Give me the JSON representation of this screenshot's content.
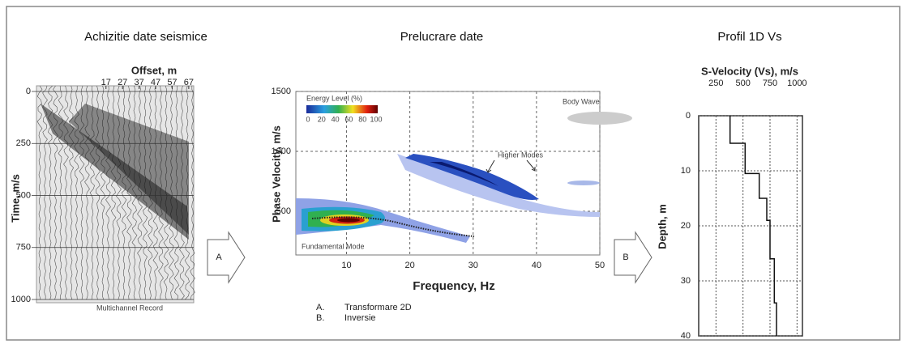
{
  "panels": [
    {
      "heading": "Achizitie date seismice",
      "x_label": "Offset, m",
      "y_label": "Time, m/s",
      "caption": "Multichannel Record",
      "xticks": [
        17,
        27,
        37,
        47,
        57,
        67
      ],
      "xlim": [
        -25,
        70
      ],
      "yticks": [
        0,
        250,
        500,
        750,
        1000
      ],
      "ylim": [
        0,
        1000
      ]
    },
    {
      "heading": "Prelucrare date",
      "x_label": "Frequency, Hz",
      "y_label": "Phase Velocity, m/s",
      "xticks": [
        10,
        20,
        30,
        40,
        50
      ],
      "xlim": [
        2,
        50
      ],
      "yticks": [
        500,
        1000,
        1500
      ],
      "ylim": [
        135,
        1500
      ],
      "grid": true,
      "legend_title": "Energy Level (%)",
      "legend_ticks": [
        0,
        20,
        40,
        60,
        80,
        100
      ],
      "annotations": [
        "Body Wave",
        "Higher Modes",
        "Fundamental Mode"
      ]
    },
    {
      "heading": "Profil 1D Vs",
      "x_label": "S-Velocity (Vs), m/s",
      "y_label": "Depth, m",
      "xticks": [
        250,
        500,
        750,
        1000
      ],
      "xlim": [
        90,
        1050
      ],
      "yticks": [
        0,
        10,
        20,
        30,
        40
      ],
      "ylim": [
        0,
        40
      ],
      "grid": true,
      "profile": {
        "depth": [
          0,
          5,
          5,
          10.5,
          10.5,
          15,
          15,
          19,
          19,
          26,
          26,
          34,
          34,
          40
        ],
        "velocity": [
          380,
          380,
          520,
          520,
          650,
          650,
          720,
          720,
          750,
          750,
          790,
          790,
          810,
          810
        ]
      }
    }
  ],
  "arrows": [
    "A",
    "B"
  ],
  "notes": [
    {
      "marker": "A.",
      "text": "Transformare 2D"
    },
    {
      "marker": "B.",
      "text": "Inversie"
    }
  ]
}
